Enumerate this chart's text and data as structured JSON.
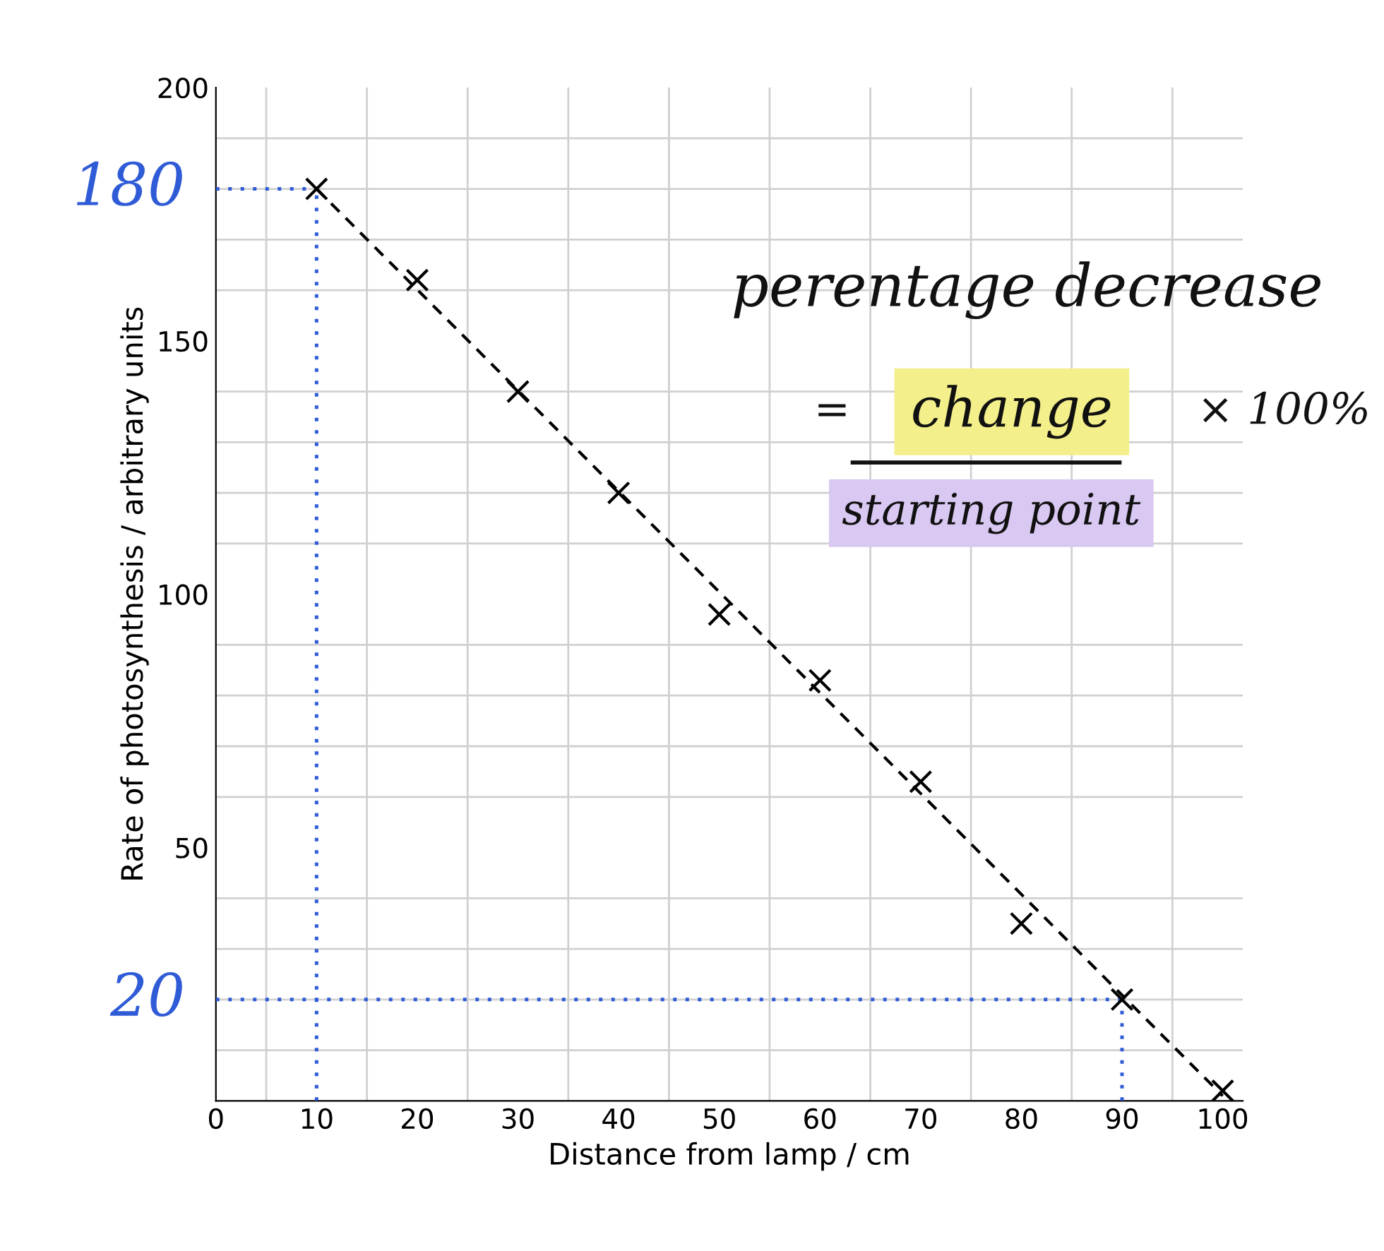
{
  "chart_data": {
    "type": "scatter",
    "xlabel": "Distance from lamp / cm",
    "ylabel": "Rate of photosynthesis / arbitrary units",
    "xlim": [
      0,
      102
    ],
    "ylim": [
      0,
      200
    ],
    "xticks": [
      0,
      10,
      20,
      30,
      40,
      50,
      60,
      70,
      80,
      90,
      100
    ],
    "yticks": [
      50,
      100,
      150,
      200
    ],
    "grid": true,
    "marker": "cross",
    "series": [
      {
        "color": "#000000",
        "x": [
          10,
          20,
          30,
          40,
          50,
          60,
          70,
          80,
          90,
          100
        ],
        "values": [
          180,
          162,
          140,
          120,
          96,
          83,
          63,
          35,
          20,
          2
        ]
      },
      {
        "type": "line",
        "color": "#000000",
        "line_style": "dashed",
        "marker": "none",
        "x": [
          10,
          100
        ],
        "values": [
          180,
          1
        ]
      }
    ],
    "ref_lines": [
      {
        "axis": "y",
        "value": 180,
        "label": "180",
        "color": "#2f5bd6",
        "line_style": "dotted"
      },
      {
        "axis": "y",
        "value": 20,
        "label": "20",
        "color": "#2f5bd6",
        "line_style": "dotted"
      },
      {
        "axis": "x",
        "value": 10,
        "color": "#2f5bd6",
        "line_style": "dotted"
      },
      {
        "axis": "x",
        "value": 90,
        "color": "#2f5bd6",
        "line_style": "dotted"
      }
    ],
    "annotations": [
      "perentage decrease",
      "=",
      "change",
      "starting point",
      "× 100%"
    ]
  }
}
